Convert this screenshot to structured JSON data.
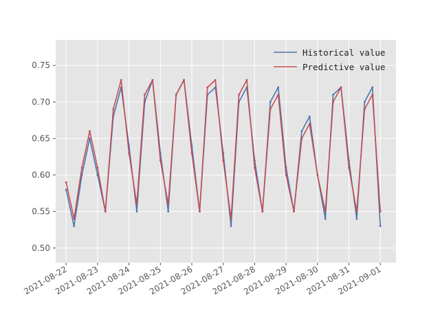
{
  "chart_data": {
    "type": "line",
    "title": "",
    "xlabel": "",
    "ylabel": "",
    "x_ticks": [
      "2021-08-22",
      "2021-08-23",
      "2021-08-24",
      "2021-08-25",
      "2021-08-26",
      "2021-08-27",
      "2021-08-28",
      "2021-08-29",
      "2021-08-30",
      "2021-08-31",
      "2021-09-01"
    ],
    "y_ticks": [
      "0.50",
      "0.55",
      "0.60",
      "0.65",
      "0.70",
      "0.75"
    ],
    "xlim": [
      "2021-08-21T16:00",
      "2021-09-01T12:00"
    ],
    "ylim": [
      0.48,
      0.785
    ],
    "grid": true,
    "legend_position": "top-right",
    "series": [
      {
        "name": "Historical value",
        "color": "#4c72b0",
        "x": [
          "2021-08-22T00:00",
          "2021-08-22T06:00",
          "2021-08-22T12:00",
          "2021-08-22T18:00",
          "2021-08-23T00:00",
          "2021-08-23T06:00",
          "2021-08-23T12:00",
          "2021-08-23T18:00",
          "2021-08-24T00:00",
          "2021-08-24T06:00",
          "2021-08-24T12:00",
          "2021-08-24T18:00",
          "2021-08-25T00:00",
          "2021-08-25T06:00",
          "2021-08-25T12:00",
          "2021-08-25T18:00",
          "2021-08-26T00:00",
          "2021-08-26T06:00",
          "2021-08-26T12:00",
          "2021-08-26T18:00",
          "2021-08-27T00:00",
          "2021-08-27T06:00",
          "2021-08-27T12:00",
          "2021-08-27T18:00",
          "2021-08-28T00:00",
          "2021-08-28T06:00",
          "2021-08-28T12:00",
          "2021-08-28T18:00",
          "2021-08-29T00:00",
          "2021-08-29T06:00",
          "2021-08-29T12:00",
          "2021-08-29T18:00",
          "2021-08-30T00:00",
          "2021-08-30T06:00",
          "2021-08-30T12:00",
          "2021-08-30T18:00",
          "2021-08-31T00:00",
          "2021-08-31T06:00",
          "2021-08-31T12:00",
          "2021-08-31T18:00",
          "2021-09-01T00:00"
        ],
        "values": [
          0.58,
          0.53,
          0.6,
          0.65,
          0.6,
          0.55,
          0.68,
          0.72,
          0.64,
          0.55,
          0.7,
          0.73,
          0.63,
          0.55,
          0.71,
          0.73,
          0.64,
          0.55,
          0.71,
          0.72,
          0.63,
          0.53,
          0.7,
          0.72,
          0.62,
          0.55,
          0.7,
          0.72,
          0.61,
          0.55,
          0.66,
          0.68,
          0.6,
          0.54,
          0.71,
          0.72,
          0.62,
          0.54,
          0.7,
          0.72,
          0.53
        ]
      },
      {
        "name": "Predictive value",
        "color": "#c44e52",
        "x": [
          "2021-08-22T00:00",
          "2021-08-22T06:00",
          "2021-08-22T12:00",
          "2021-08-22T18:00",
          "2021-08-23T00:00",
          "2021-08-23T06:00",
          "2021-08-23T12:00",
          "2021-08-23T18:00",
          "2021-08-24T00:00",
          "2021-08-24T06:00",
          "2021-08-24T12:00",
          "2021-08-24T18:00",
          "2021-08-25T00:00",
          "2021-08-25T06:00",
          "2021-08-25T12:00",
          "2021-08-25T18:00",
          "2021-08-26T00:00",
          "2021-08-26T06:00",
          "2021-08-26T12:00",
          "2021-08-26T18:00",
          "2021-08-27T00:00",
          "2021-08-27T06:00",
          "2021-08-27T12:00",
          "2021-08-27T18:00",
          "2021-08-28T00:00",
          "2021-08-28T06:00",
          "2021-08-28T12:00",
          "2021-08-28T18:00",
          "2021-08-29T00:00",
          "2021-08-29T06:00",
          "2021-08-29T12:00",
          "2021-08-29T18:00",
          "2021-08-30T00:00",
          "2021-08-30T06:00",
          "2021-08-30T12:00",
          "2021-08-30T18:00",
          "2021-08-31T00:00",
          "2021-08-31T06:00",
          "2021-08-31T12:00",
          "2021-08-31T18:00",
          "2021-09-01T00:00"
        ],
        "values": [
          0.59,
          0.54,
          0.61,
          0.66,
          0.61,
          0.55,
          0.69,
          0.73,
          0.63,
          0.56,
          0.71,
          0.73,
          0.62,
          0.56,
          0.71,
          0.73,
          0.63,
          0.55,
          0.72,
          0.73,
          0.62,
          0.54,
          0.71,
          0.73,
          0.61,
          0.55,
          0.69,
          0.71,
          0.6,
          0.55,
          0.65,
          0.67,
          0.6,
          0.55,
          0.7,
          0.72,
          0.61,
          0.55,
          0.69,
          0.71,
          0.55
        ]
      }
    ]
  }
}
